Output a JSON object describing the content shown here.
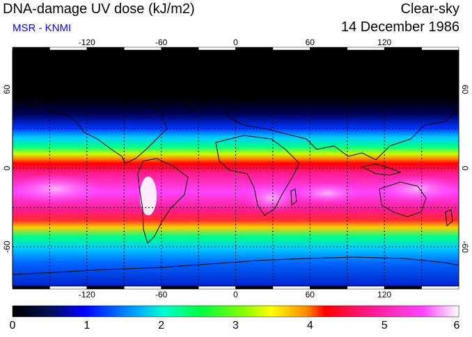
{
  "title": "DNA-damage UV dose (kJ/m2)",
  "subtitle": "MSR - KNMI",
  "condition": "Clear-sky",
  "date": "14 December 1986",
  "x_ticks": [
    "-120",
    "-60",
    "0",
    "60",
    "120"
  ],
  "y_ticks": [
    "60",
    "0",
    "-60"
  ],
  "colorbar": {
    "ticks": [
      "0",
      "1",
      "2",
      "3",
      "4",
      "5",
      "6"
    ],
    "colors": [
      "#000000",
      "#001a8c",
      "#0000ff",
      "#00ccff",
      "#00ff88",
      "#66ff00",
      "#ffff00",
      "#ff8800",
      "#ff0000",
      "#ff1a8c",
      "#ff44ff",
      "#ffffff"
    ]
  },
  "map": {
    "lon_range": [
      -180,
      180
    ],
    "lat_range": [
      -90,
      90
    ]
  }
}
